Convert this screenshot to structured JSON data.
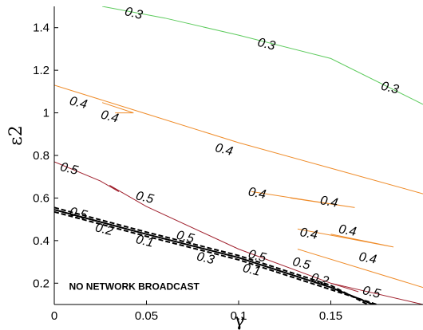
{
  "chart_data": {
    "type": "line",
    "plot_kind": "contour",
    "xlabel": "γ",
    "ylabel": "ε2",
    "xlim": [
      0,
      0.2
    ],
    "ylim": [
      0.1,
      1.5
    ],
    "x_ticks": [
      0,
      0.05,
      0.1,
      0.15
    ],
    "x_tick_labels": [
      "0",
      "0.05",
      "0.1",
      "0.15"
    ],
    "y_ticks": [
      0.2,
      0.4,
      0.6,
      0.8,
      1.0,
      1.2,
      1.4
    ],
    "y_tick_labels": [
      "0.2",
      "0.4",
      "0.6",
      "0.8",
      "1",
      "1.2",
      "1.4"
    ],
    "grid": false,
    "series": [
      {
        "level": "0.3",
        "color": "#5ecb5e",
        "style": "solid",
        "points": [
          [
            0.026,
            1.5
          ],
          [
            0.06,
            1.445
          ],
          [
            0.1,
            1.365
          ],
          [
            0.15,
            1.255
          ],
          [
            0.2,
            1.04
          ]
        ]
      },
      {
        "level": "0.4",
        "color": "#ef8c2a",
        "style": "solid",
        "points": [
          [
            0,
            1.13
          ],
          [
            0.05,
            0.995
          ],
          [
            0.1,
            0.86
          ],
          [
            0.15,
            0.74
          ],
          [
            0.2,
            0.62
          ]
        ]
      },
      {
        "level": "0.4",
        "color": "#ef8c2a",
        "style": "solid",
        "points": [
          [
            0.026,
            1.048
          ],
          [
            0.043,
            1.0
          ],
          [
            0.033,
            1.0
          ]
        ]
      },
      {
        "level": "0.4",
        "color": "#ef8c2a",
        "style": "solid",
        "points": [
          [
            0.107,
            0.63
          ],
          [
            0.163,
            0.555
          ],
          [
            0.128,
            0.6
          ]
        ]
      },
      {
        "level": "0.4",
        "color": "#ef8c2a",
        "style": "solid",
        "points": [
          [
            0.132,
            0.455
          ],
          [
            0.184,
            0.37
          ],
          [
            0.15,
            0.43
          ]
        ]
      },
      {
        "level": "0.4",
        "color": "#ef8c2a",
        "style": "solid",
        "points": [
          [
            0.132,
            0.36
          ],
          [
            0.2,
            0.18
          ]
        ]
      },
      {
        "level": "0.5",
        "color": "#a0212e",
        "style": "solid",
        "points": [
          [
            0,
            0.77
          ],
          [
            0.025,
            0.68
          ],
          [
            0.035,
            0.63
          ],
          [
            0.03,
            0.66
          ],
          [
            0.05,
            0.56
          ],
          [
            0.1,
            0.36
          ],
          [
            0.15,
            0.2
          ],
          [
            0.2,
            0.1
          ]
        ]
      },
      {
        "level": "0.5",
        "color": "#a0212e",
        "style": "solid",
        "points": [
          [
            0.15,
            0.2
          ],
          [
            0.165,
            0.16
          ]
        ]
      },
      {
        "level": "0.1",
        "color": "#000000",
        "style": "solid",
        "points": [
          [
            0,
            0.545
          ],
          [
            0.05,
            0.43
          ],
          [
            0.1,
            0.32
          ],
          [
            0.15,
            0.18
          ],
          [
            0.173,
            0.1
          ]
        ]
      },
      {
        "level": "0.2",
        "color": "#000000",
        "style": "dashed",
        "points": [
          [
            0,
            0.555
          ],
          [
            0.05,
            0.44
          ],
          [
            0.1,
            0.33
          ],
          [
            0.15,
            0.19
          ],
          [
            0.17,
            0.1
          ]
        ]
      },
      {
        "level": "0.3",
        "color": "#000000",
        "style": "dashed",
        "points": [
          [
            0,
            0.535
          ],
          [
            0.05,
            0.42
          ],
          [
            0.1,
            0.31
          ],
          [
            0.15,
            0.17
          ],
          [
            0.175,
            0.1
          ]
        ]
      }
    ],
    "contour_labels": [
      {
        "text": "0.3",
        "x": 0.043,
        "y": 1.465,
        "rotation": 14
      },
      {
        "text": "0.3",
        "x": 0.115,
        "y": 1.32,
        "rotation": 14
      },
      {
        "text": "0.3",
        "x": 0.182,
        "y": 1.115,
        "rotation": 14
      },
      {
        "text": "0.4",
        "x": 0.013,
        "y": 1.045,
        "rotation": 14
      },
      {
        "text": "0.4",
        "x": 0.03,
        "y": 0.98,
        "rotation": 14
      },
      {
        "text": "0.4",
        "x": 0.092,
        "y": 0.825,
        "rotation": 14
      },
      {
        "text": "0.4",
        "x": 0.11,
        "y": 0.62,
        "rotation": 10
      },
      {
        "text": "0.4",
        "x": 0.149,
        "y": 0.58,
        "rotation": 10
      },
      {
        "text": "0.4",
        "x": 0.138,
        "y": 0.43,
        "rotation": 10
      },
      {
        "text": "0.4",
        "x": 0.159,
        "y": 0.445,
        "rotation": 10
      },
      {
        "text": "0.4",
        "x": 0.17,
        "y": 0.315,
        "rotation": 10
      },
      {
        "text": "0.5",
        "x": 0.008,
        "y": 0.735,
        "rotation": 14
      },
      {
        "text": "0.5",
        "x": 0.049,
        "y": 0.6,
        "rotation": 14
      },
      {
        "text": "0.5",
        "x": 0.013,
        "y": 0.525,
        "rotation": 14
      },
      {
        "text": "0.5",
        "x": 0.071,
        "y": 0.415,
        "rotation": 14
      },
      {
        "text": "0.5",
        "x": 0.11,
        "y": 0.325,
        "rotation": 14
      },
      {
        "text": "0.5",
        "x": 0.134,
        "y": 0.29,
        "rotation": 14
      },
      {
        "text": "0.5",
        "x": 0.172,
        "y": 0.155,
        "rotation": 14
      },
      {
        "text": "0.2",
        "x": 0.027,
        "y": 0.45,
        "rotation": 14
      },
      {
        "text": "0.1",
        "x": 0.049,
        "y": 0.395,
        "rotation": 14
      },
      {
        "text": "0.3",
        "x": 0.082,
        "y": 0.315,
        "rotation": 14
      },
      {
        "text": "0.1",
        "x": 0.107,
        "y": 0.26,
        "rotation": 14
      },
      {
        "text": "0.2",
        "x": 0.144,
        "y": 0.215,
        "rotation": 14
      }
    ],
    "annotations": [
      {
        "text": "NO NETWORK BROADCAST",
        "x": 0.008,
        "y": 0.17
      }
    ]
  }
}
